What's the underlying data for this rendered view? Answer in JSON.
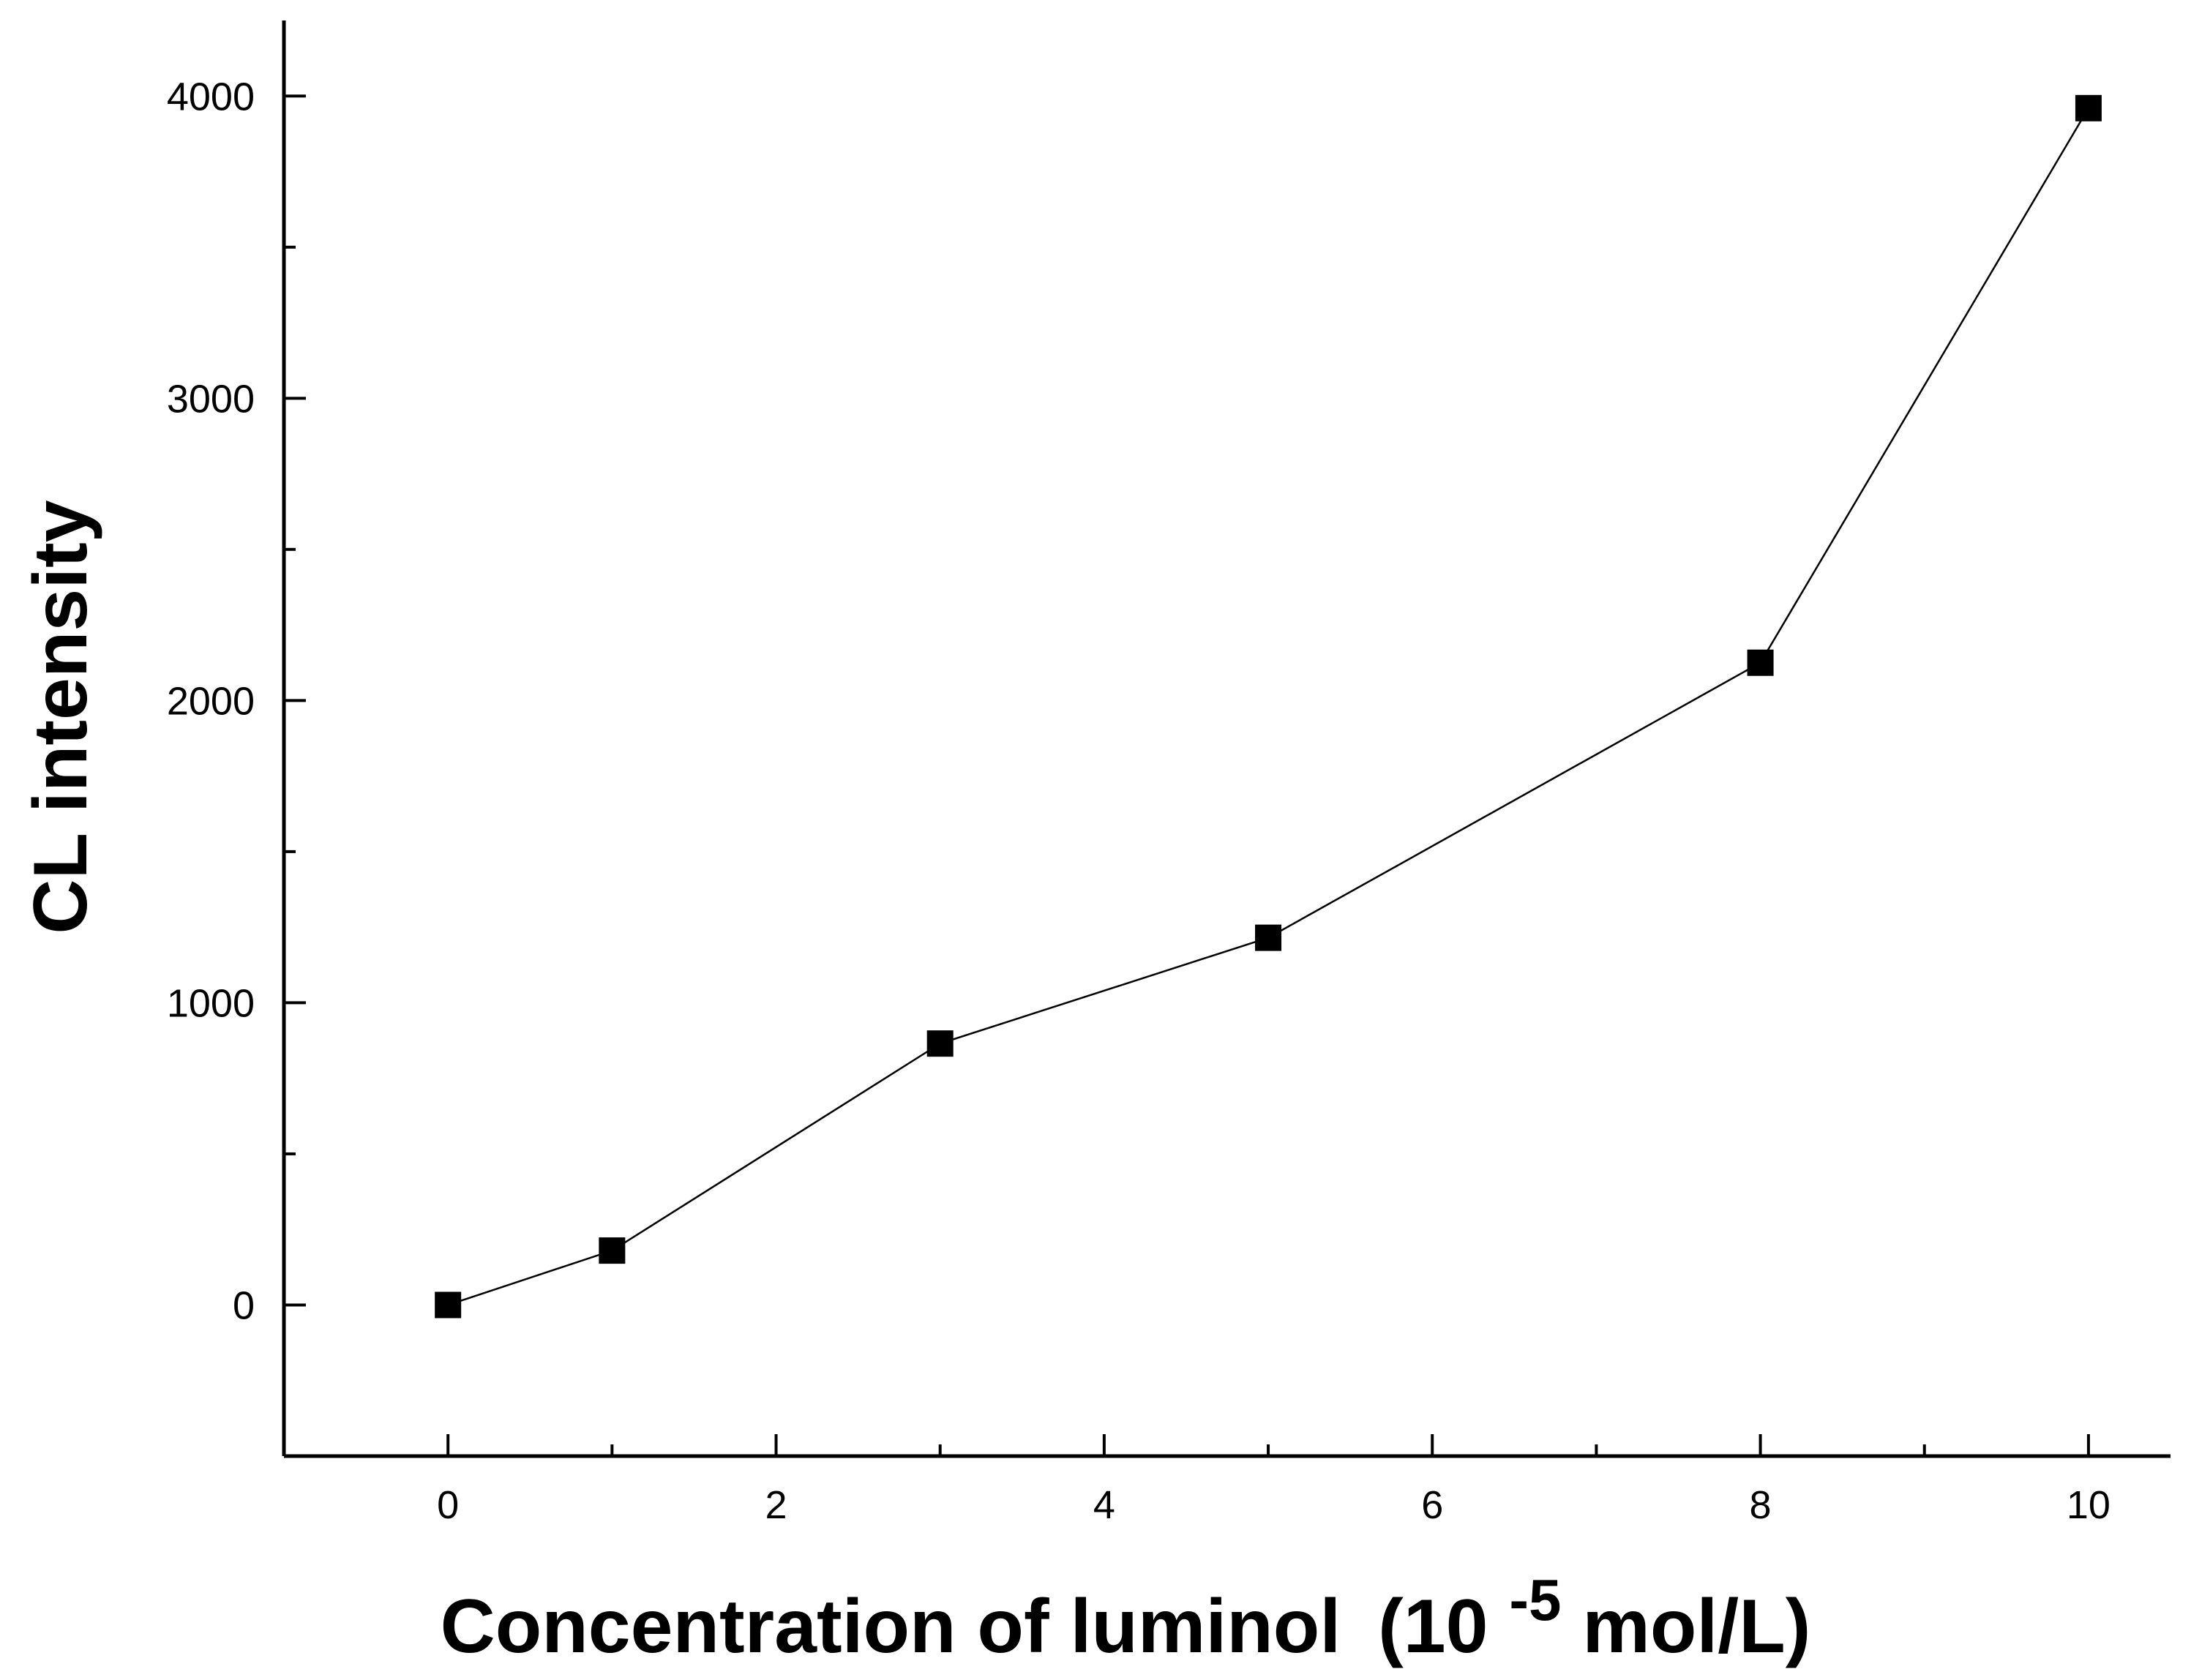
{
  "chart_data": {
    "type": "line",
    "title": "",
    "xlabel": "Concentration of luminol",
    "xlabel_unit_open": "(10",
    "xlabel_unit_exp": "-5",
    "xlabel_unit_close": "mol/L)",
    "ylabel": "CL intensity",
    "xlim": [
      -1,
      10.5
    ],
    "ylim": [
      -500,
      4250
    ],
    "x_ticks": [
      0,
      2,
      4,
      6,
      8,
      10
    ],
    "x_tick_labels": [
      "0",
      "2",
      "4",
      "6",
      "8",
      "10"
    ],
    "x_minor_ticks": [
      1,
      3,
      5,
      7,
      9
    ],
    "y_ticks": [
      0,
      1000,
      2000,
      3000,
      4000
    ],
    "y_tick_labels": [
      "0",
      "1000",
      "2000",
      "3000",
      "4000"
    ],
    "y_minor_ticks": [
      500,
      1500,
      2500,
      3500
    ],
    "grid": false,
    "legend": "none",
    "series": [
      {
        "marker": "square",
        "color": "#000000",
        "x": [
          0,
          1,
          3,
          5,
          8,
          10
        ],
        "y": [
          0,
          180,
          865,
          1215,
          2125,
          3960
        ]
      }
    ]
  }
}
